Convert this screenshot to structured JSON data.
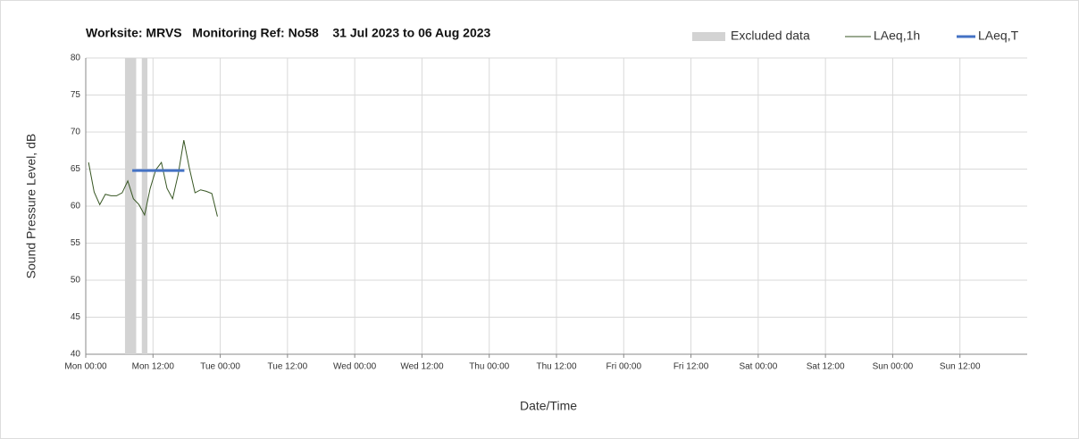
{
  "chart_data": {
    "type": "line",
    "title": "Worksite: MRVS   Monitoring Ref: No58    31 Jul 2023 to 06 Aug 2023",
    "x_label": "Date/Time",
    "y_label": "Sound Pressure Level, dB",
    "xlim": [
      0,
      168
    ],
    "xticks": [
      {
        "value": 0,
        "label": "Mon 00:00"
      },
      {
        "value": 12,
        "label": "Mon 12:00"
      },
      {
        "value": 24,
        "label": "Tue 00:00"
      },
      {
        "value": 36,
        "label": "Tue 12:00"
      },
      {
        "value": 48,
        "label": "Wed 00:00"
      },
      {
        "value": 60,
        "label": "Wed 12:00"
      },
      {
        "value": 72,
        "label": "Thu 00:00"
      },
      {
        "value": 84,
        "label": "Thu 12:00"
      },
      {
        "value": 96,
        "label": "Fri 00:00"
      },
      {
        "value": 108,
        "label": "Fri 12:00"
      },
      {
        "value": 120,
        "label": "Sat 00:00"
      },
      {
        "value": 132,
        "label": "Sat 12:00"
      },
      {
        "value": 144,
        "label": "Sun 00:00"
      },
      {
        "value": 156,
        "label": "Sun 12:00"
      }
    ],
    "ylim": [
      40,
      80
    ],
    "yticks": [
      40,
      45,
      50,
      55,
      60,
      65,
      70,
      75,
      80
    ],
    "grid": true,
    "legend": "top-right",
    "excluded": {
      "name": "Excluded data",
      "color": "#d3d3d3",
      "ranges": [
        [
          7,
          9
        ],
        [
          10,
          11
        ]
      ]
    },
    "series": [
      {
        "name": "LAeq,1h",
        "color": "#375623",
        "width": 1,
        "x": [
          0.5,
          1.5,
          2.5,
          3.5,
          4.5,
          5.5,
          6.5,
          7.5,
          8.5,
          9.5,
          10.5,
          11.5,
          12.5,
          13.5,
          14.5,
          15.5,
          16.5,
          17.5,
          18.5,
          19.5,
          20.5,
          21.5,
          22.5,
          23.5
        ],
        "values": [
          65.9,
          61.9,
          60.2,
          61.6,
          61.4,
          61.4,
          61.8,
          63.4,
          61,
          60.2,
          58.8,
          62.4,
          64.9,
          65.9,
          62.4,
          61,
          64.3,
          68.9,
          65.1,
          61.8,
          62.2,
          62,
          61.7,
          58.6
        ]
      },
      {
        "name": "LAeq,T",
        "color": "#4472c4",
        "width": 3,
        "x": [
          8.3,
          17.6
        ],
        "values": [
          64.8,
          64.8
        ]
      }
    ]
  }
}
